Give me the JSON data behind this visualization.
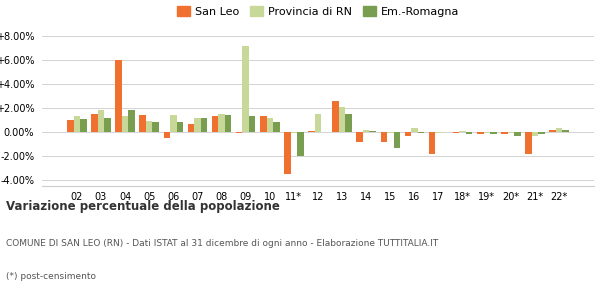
{
  "years": [
    "02",
    "03",
    "04",
    "05",
    "06",
    "07",
    "08",
    "09",
    "10",
    "11*",
    "12",
    "13",
    "14",
    "15",
    "16",
    "17",
    "18*",
    "19*",
    "20*",
    "21*",
    "22*"
  ],
  "san_leo": [
    1.0,
    1.5,
    6.0,
    1.4,
    -0.5,
    0.7,
    1.3,
    -0.1,
    1.3,
    -3.5,
    0.1,
    2.6,
    -0.8,
    -0.8,
    -0.3,
    -1.8,
    -0.1,
    -0.2,
    -0.2,
    -1.8,
    0.2
  ],
  "provincia_rn": [
    1.3,
    1.8,
    1.3,
    0.9,
    1.4,
    1.2,
    1.5,
    7.2,
    1.2,
    -0.1,
    1.5,
    2.1,
    0.2,
    -0.1,
    0.3,
    -0.1,
    0.1,
    -0.1,
    -0.1,
    -0.3,
    0.3
  ],
  "em_romagna": [
    1.1,
    1.2,
    1.8,
    0.8,
    0.8,
    1.2,
    1.4,
    1.3,
    0.8,
    -2.0,
    0.0,
    1.5,
    0.1,
    -1.3,
    -0.1,
    0.0,
    -0.2,
    -0.2,
    -0.3,
    -0.2,
    0.2
  ],
  "color_san_leo": "#f07030",
  "color_provincia": "#c8d898",
  "color_em_romagna": "#7a9e50",
  "bg_color": "#ffffff",
  "grid_color": "#cccccc",
  "title_bold": "Variazione percentuale della popolazione",
  "subtitle": "COMUNE DI SAN LEO (RN) - Dati ISTAT al 31 dicembre di ogni anno - Elaborazione TUTTITALIA.IT",
  "footnote": "(*) post-censimento",
  "ylim": [
    -4.5,
    8.5
  ],
  "yticks": [
    -4.0,
    -2.0,
    0.0,
    2.0,
    4.0,
    6.0,
    8.0
  ]
}
